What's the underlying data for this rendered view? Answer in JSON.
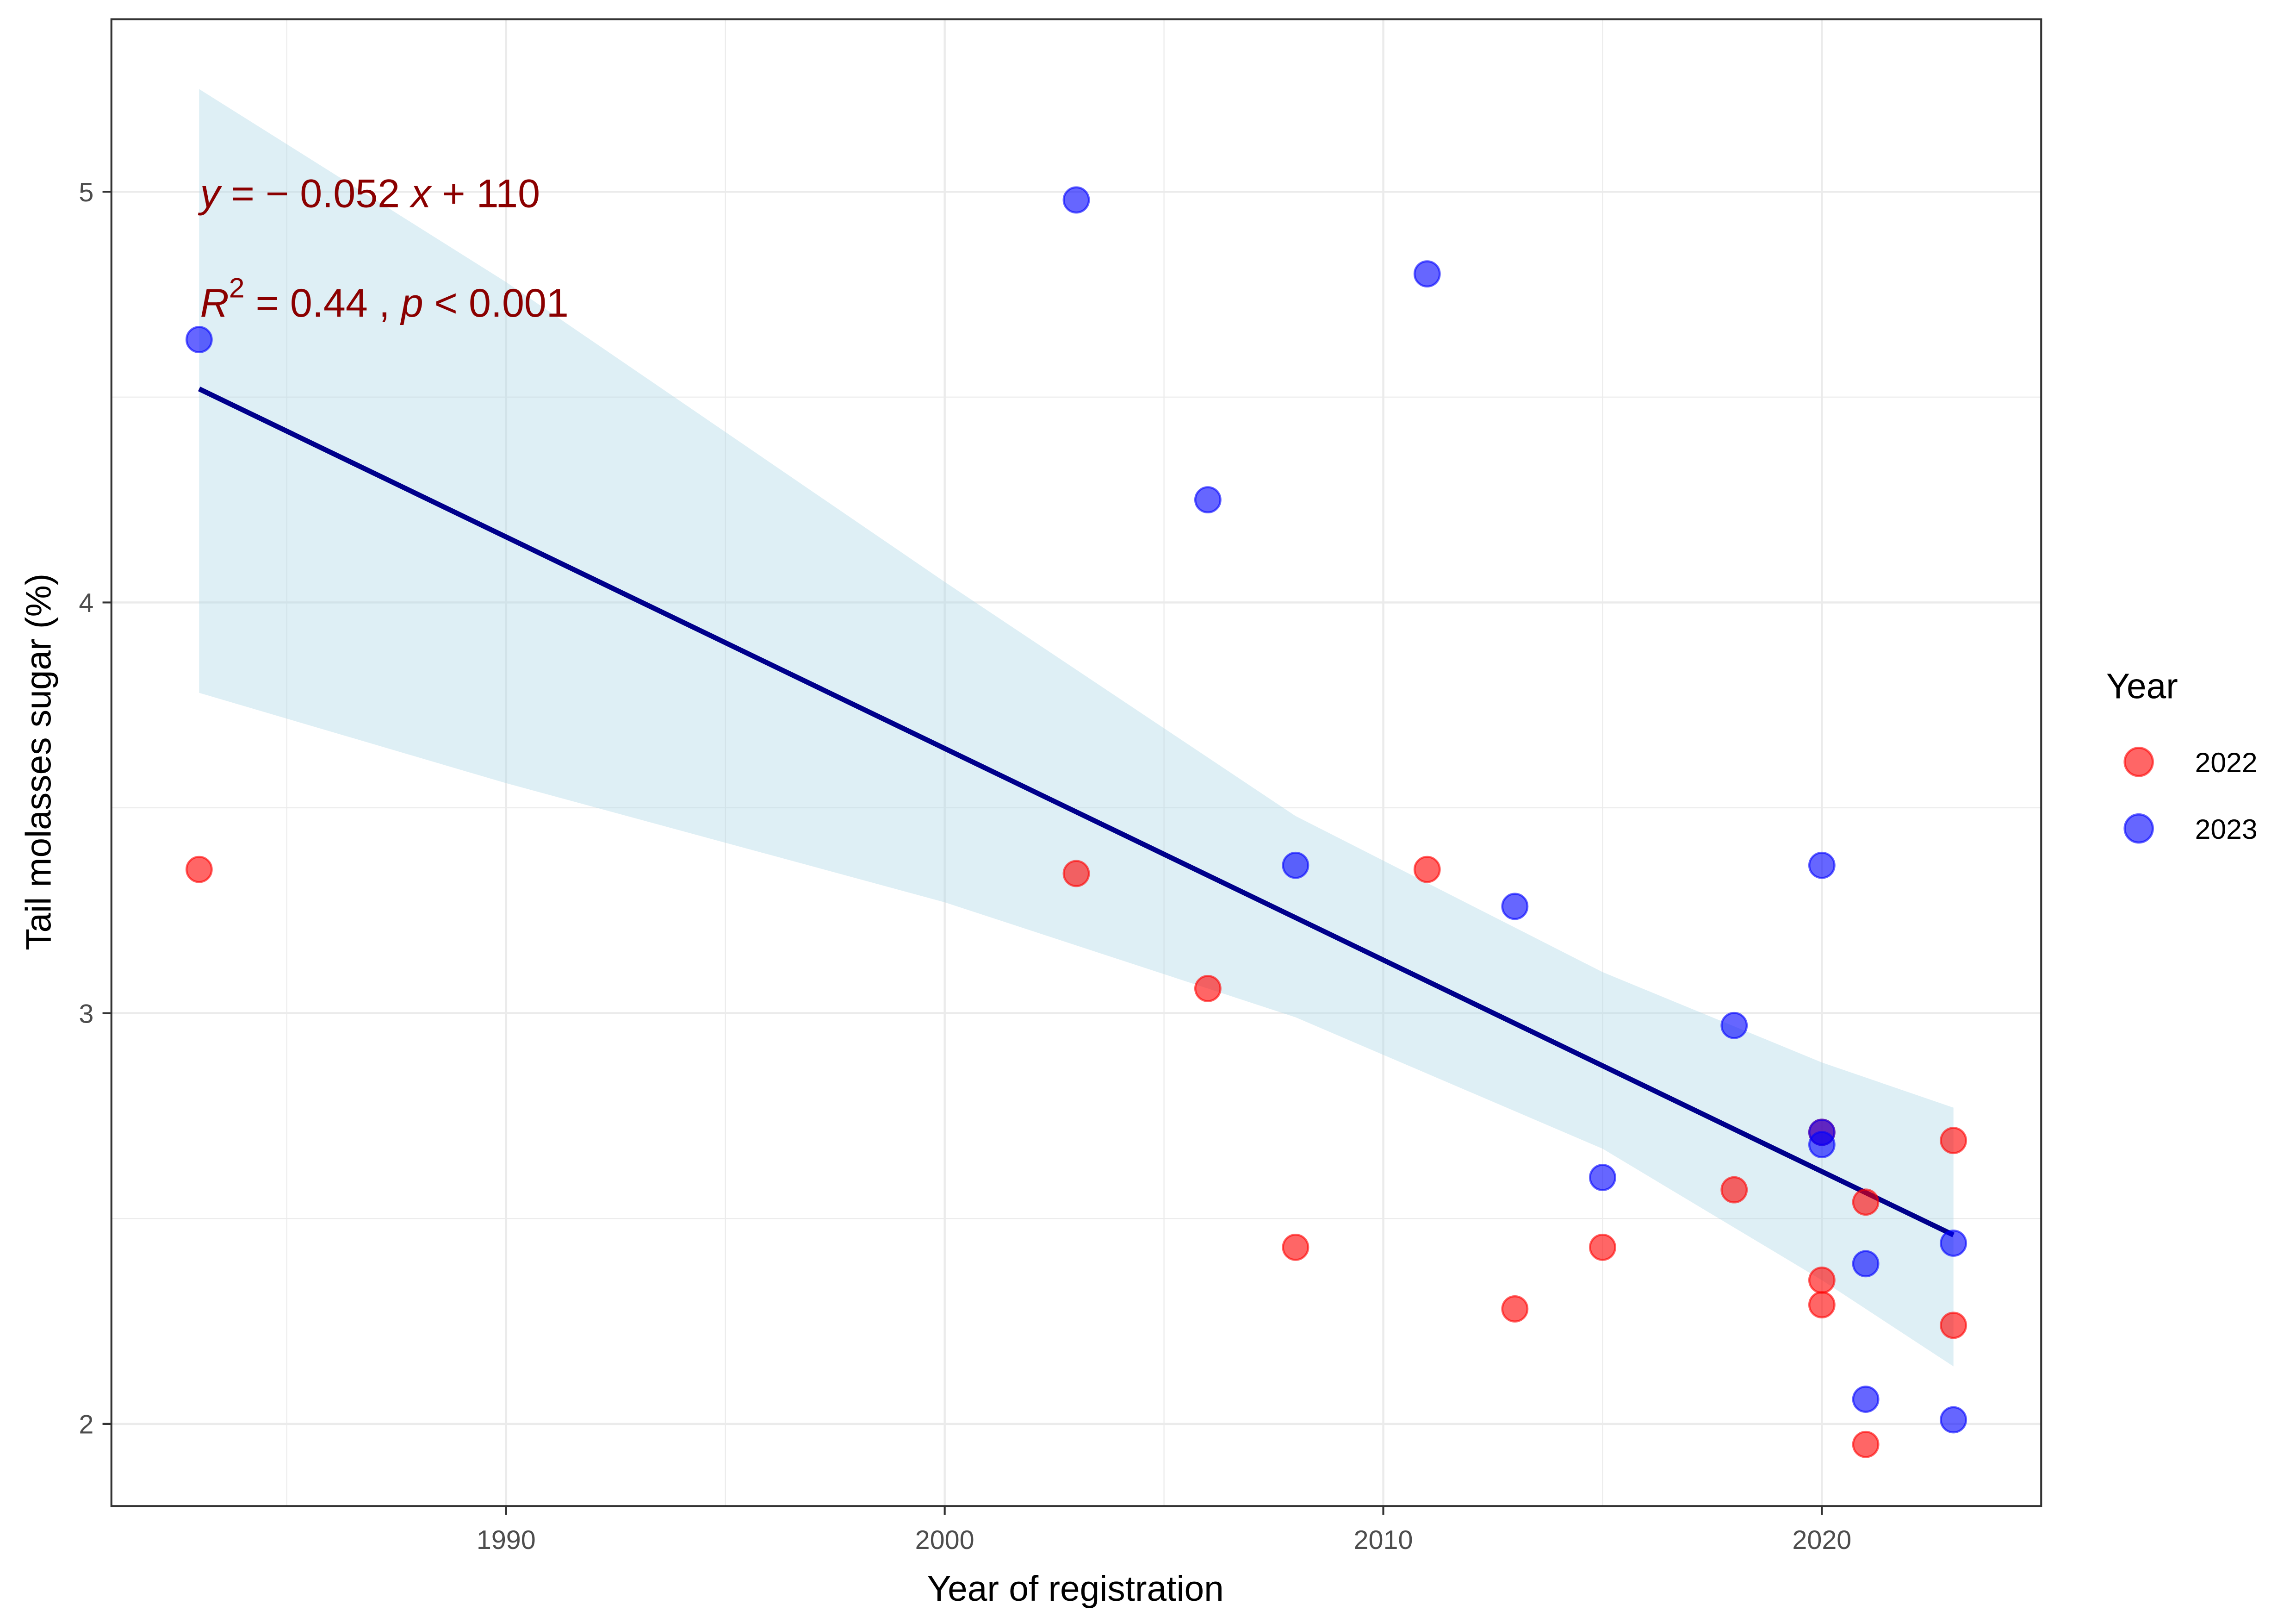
{
  "chart_data": {
    "type": "scatter",
    "title": "",
    "xlabel": "Year of registration",
    "ylabel": "Tail molasses sugar (%)",
    "xlim": [
      1981,
      2025
    ],
    "ylim": [
      1.8,
      5.42
    ],
    "x_ticks": [
      1990,
      2000,
      2010,
      2020
    ],
    "x_tick_labels": [
      "1990",
      "2000",
      "2010",
      "2020"
    ],
    "x_minor_ticks": [
      1985,
      1995,
      2005,
      2015
    ],
    "y_ticks": [
      2,
      3,
      4,
      5
    ],
    "y_tick_labels": [
      "2",
      "3",
      "4",
      "5"
    ],
    "y_minor_ticks": [
      2.5,
      3.5,
      4.5
    ],
    "grid": true,
    "legend": {
      "title": "Year",
      "position": "right",
      "entries": [
        {
          "label": "2022",
          "color": "#ff0000"
        },
        {
          "label": "2023",
          "color": "#0000ff"
        }
      ]
    },
    "series": [
      {
        "name": "2022",
        "color": "#ff0000",
        "x": [
          1983,
          2003,
          2006,
          2008,
          2011,
          2013,
          2015,
          2018,
          2020,
          2020,
          2020,
          2021,
          2021,
          2023,
          2023
        ],
        "y": [
          3.35,
          3.34,
          3.06,
          2.43,
          3.35,
          2.28,
          2.43,
          2.57,
          2.35,
          2.29,
          2.71,
          2.54,
          1.95,
          2.69,
          2.24
        ]
      },
      {
        "name": "2023",
        "color": "#0000ff",
        "x": [
          1983,
          2003,
          2006,
          2008,
          2011,
          2013,
          2015,
          2018,
          2020,
          2020,
          2020,
          2021,
          2021,
          2023,
          2023
        ],
        "y": [
          4.64,
          4.98,
          4.25,
          3.36,
          4.8,
          3.26,
          2.6,
          2.97,
          3.36,
          2.71,
          2.68,
          2.39,
          2.06,
          2.44,
          2.01
        ]
      }
    ],
    "regression": {
      "x": [
        1983,
        2023
      ],
      "y": [
        4.52,
        2.46
      ],
      "color": "#00008b",
      "ci_band": {
        "x": [
          1983,
          1990,
          2000,
          2008,
          2015,
          2020,
          2023
        ],
        "upper": [
          5.25,
          4.78,
          4.05,
          3.48,
          3.1,
          2.88,
          2.77
        ],
        "lower": [
          3.78,
          3.56,
          3.27,
          2.99,
          2.67,
          2.35,
          2.14
        ],
        "color": "#add8e6"
      }
    },
    "annotations": {
      "equation": {
        "y_var": "y",
        "text": " = − 0.052 ",
        "x_var": "x",
        "tail": " + 110"
      },
      "stats": {
        "r_var": "R",
        "sup": "2",
        "text": " = 0.44 , ",
        "p_var": "p",
        "tail": " < 0.001"
      }
    }
  }
}
